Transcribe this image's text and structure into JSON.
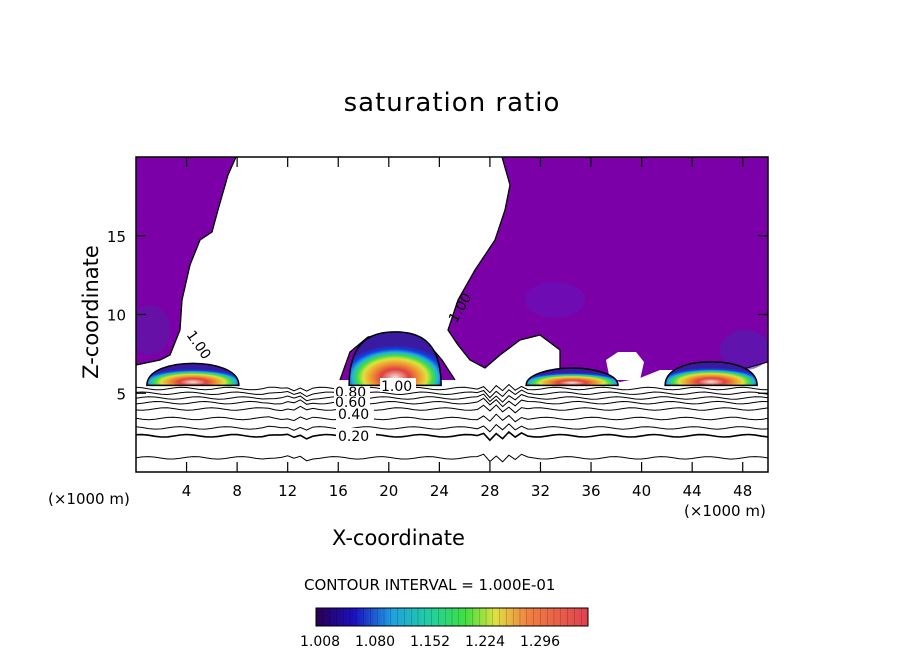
{
  "chart_data": {
    "type": "heatmap",
    "title": "saturation ratio",
    "xlabel": "X-coordinate",
    "ylabel": "Z-coordinate",
    "x_unit": "(×1000 m)",
    "xlim": [
      0,
      50
    ],
    "ylim": [
      0,
      20
    ],
    "x_ticks": [
      "4",
      "8",
      "12",
      "16",
      "20",
      "24",
      "28",
      "32",
      "36",
      "40",
      "44",
      "48"
    ],
    "y_ticks": [
      "5",
      "10",
      "15"
    ],
    "contour_interval_text": "CONTOUR INTERVAL = 1.000E-01",
    "contour_labels": [
      "1.00",
      "1.00",
      "1.00",
      "0.80",
      "0.60",
      "0.40",
      "0.20"
    ],
    "colorbar": {
      "min": 1.008,
      "max": 1.35,
      "tick_labels": [
        "1.008",
        "1.080",
        "1.152",
        "1.224",
        "1.296"
      ],
      "colors": [
        "#2a0050",
        "#3a1aa0",
        "#1040e0",
        "#20b0e0",
        "#20e0a0",
        "#40e040",
        "#e0e040",
        "#f0a030",
        "#f06040",
        "#e04040"
      ]
    },
    "fill_color": "#7b00a8",
    "cloud_cells": [
      {
        "x_center": 4.5,
        "z_top": 6.9,
        "max_ratio": 1.3
      },
      {
        "x_center": 20.5,
        "z_top": 8.9,
        "max_ratio": 1.3
      },
      {
        "x_center": 34.5,
        "z_top": 6.6,
        "max_ratio": 1.3
      },
      {
        "x_center": 45.5,
        "z_top": 7.0,
        "max_ratio": 1.3
      }
    ],
    "grid": false
  }
}
